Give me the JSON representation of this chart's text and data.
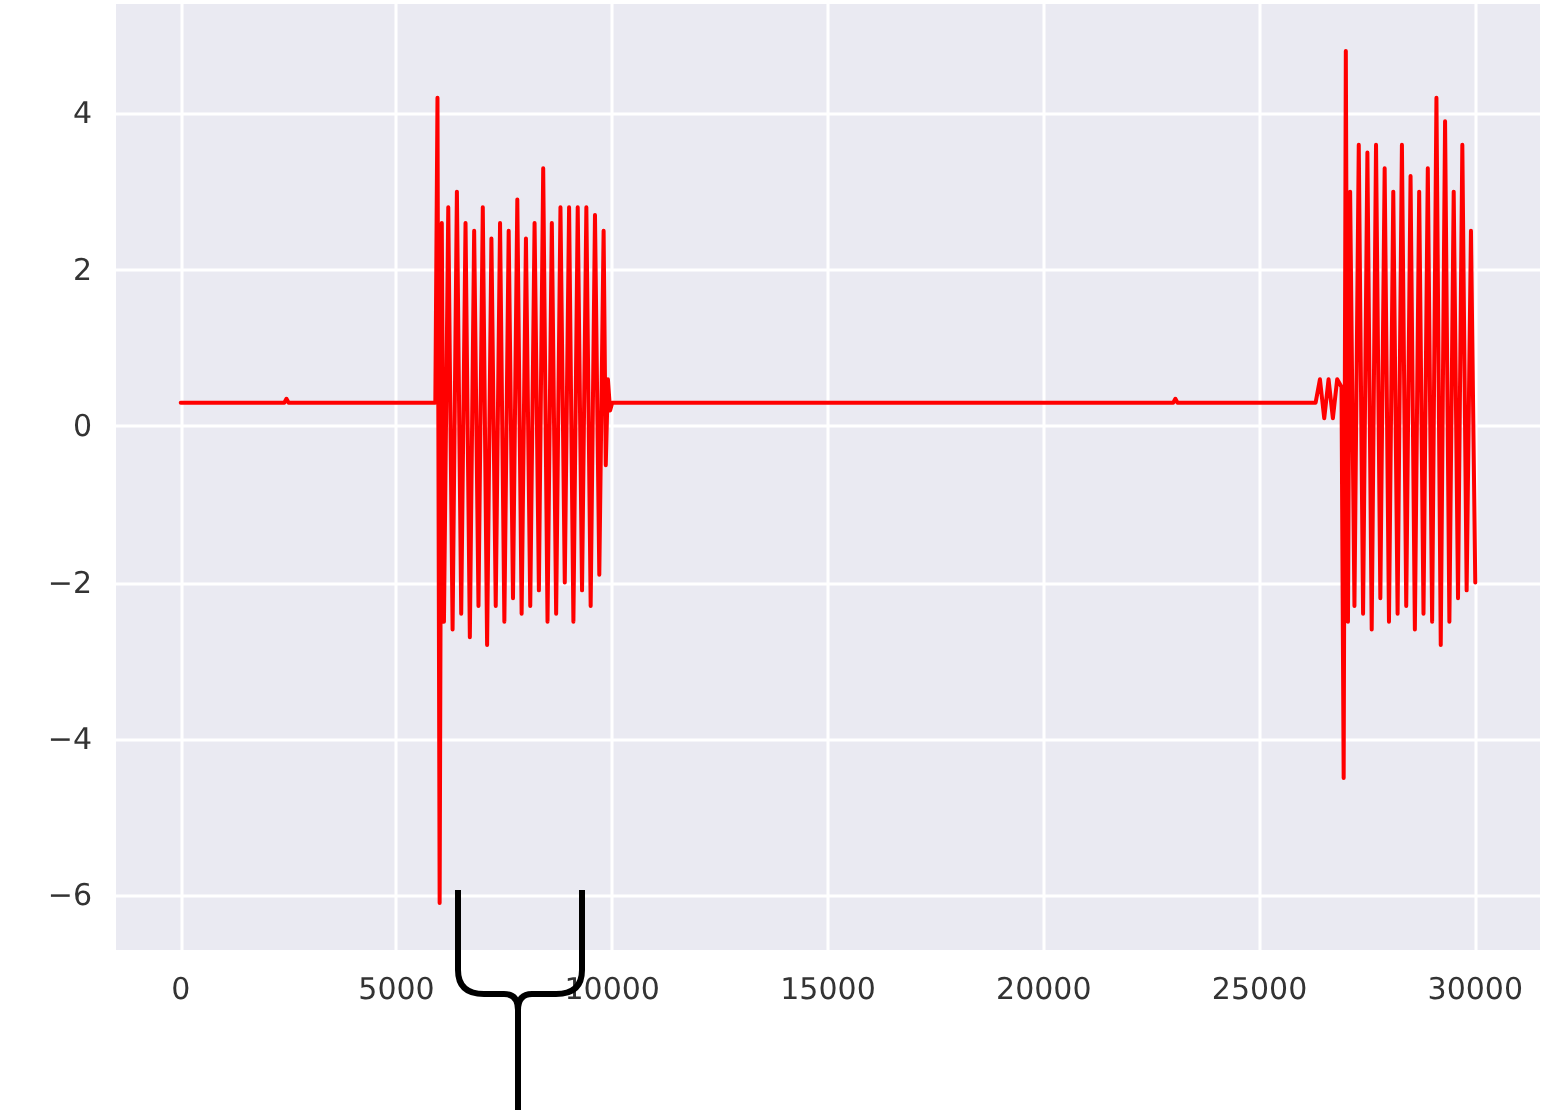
{
  "chart_data": {
    "type": "line",
    "color": "#ff0000",
    "marker": "none",
    "line_style": "solid",
    "grid": true,
    "x": [
      0,
      2400,
      2450,
      2500,
      5850,
      5900,
      5950,
      6000,
      6050,
      6100,
      6200,
      6300,
      6400,
      6500,
      6600,
      6700,
      6800,
      6900,
      7000,
      7100,
      7200,
      7300,
      7400,
      7500,
      7600,
      7700,
      7800,
      7900,
      8000,
      8100,
      8200,
      8300,
      8400,
      8500,
      8600,
      8700,
      8800,
      8900,
      9000,
      9100,
      9200,
      9300,
      9400,
      9500,
      9600,
      9700,
      9800,
      9850,
      9900,
      9950,
      10000,
      23000,
      23050,
      23100,
      26300,
      26400,
      26500,
      26600,
      26700,
      26800,
      26900,
      26950,
      27000,
      27050,
      27100,
      27200,
      27300,
      27400,
      27500,
      27600,
      27700,
      27800,
      27900,
      28000,
      28100,
      28200,
      28300,
      28400,
      28500,
      28600,
      28700,
      28800,
      28900,
      29000,
      29100,
      29200,
      29300,
      29400,
      29500,
      29600,
      29700,
      29800,
      29900,
      30000
    ],
    "values": [
      0.3,
      0.3,
      0.35,
      0.3,
      0.3,
      0.3,
      4.2,
      -6.1,
      2.6,
      -2.5,
      2.8,
      -2.6,
      3.0,
      -2.4,
      2.6,
      -2.7,
      2.5,
      -2.3,
      2.8,
      -2.8,
      2.4,
      -2.3,
      2.6,
      -2.5,
      2.5,
      -2.2,
      2.9,
      -2.4,
      2.4,
      -2.3,
      2.6,
      -2.1,
      3.3,
      -2.5,
      2.6,
      -2.4,
      2.8,
      -2.0,
      2.8,
      -2.5,
      2.8,
      -2.1,
      2.8,
      -2.3,
      2.7,
      -1.9,
      2.5,
      -0.5,
      0.6,
      0.2,
      0.3,
      0.3,
      0.35,
      0.3,
      0.3,
      0.6,
      0.1,
      0.6,
      0.1,
      0.6,
      0.5,
      -4.5,
      4.8,
      -2.5,
      3.0,
      -2.3,
      3.6,
      -2.4,
      3.5,
      -2.6,
      3.6,
      -2.2,
      3.3,
      -2.5,
      3.0,
      -2.4,
      3.6,
      -2.3,
      3.2,
      -2.6,
      3.0,
      -2.4,
      3.3,
      -2.5,
      4.2,
      -2.8,
      3.9,
      -2.5,
      3.0,
      -2.2,
      3.6,
      -2.1,
      2.5,
      -2.0
    ],
    "xlim": [
      -1500,
      31500
    ],
    "ylim": [
      -6.7,
      5.4
    ],
    "xticks": [
      0,
      5000,
      10000,
      15000,
      20000,
      25000,
      30000
    ],
    "yticks": [
      {
        "value": -6,
        "label": "−6"
      },
      {
        "value": -4,
        "label": "−4"
      },
      {
        "value": -2,
        "label": "−2"
      },
      0,
      2,
      4
    ]
  }
}
